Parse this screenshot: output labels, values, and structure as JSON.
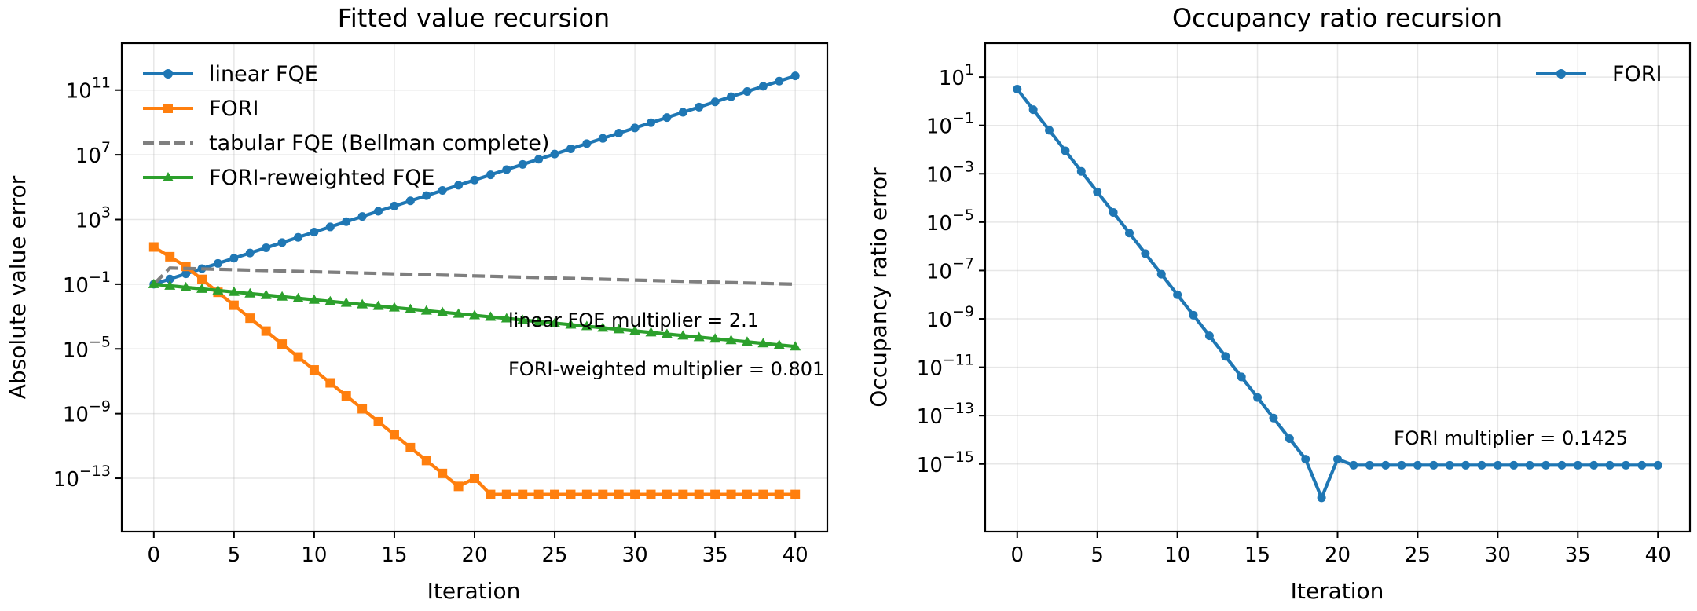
{
  "chart_data": [
    {
      "type": "line",
      "title": "Fitted value recursion",
      "xlabel": "Iteration",
      "ylabel": "Absolute value error",
      "yscale": "log",
      "xlim": [
        -2,
        42
      ],
      "ylog10_lim": [
        -16.3,
        13.9
      ],
      "xticks": [
        0,
        5,
        10,
        15,
        20,
        25,
        30,
        35,
        40
      ],
      "yticks_exp": [
        -13,
        -9,
        -5,
        -1,
        3,
        7,
        11
      ],
      "grid": true,
      "legend": {
        "placement": "upper-left",
        "entries": [
          "linear FQE",
          "FORI",
          "tabular FQE (Bellman complete)",
          "FORI-reweighted FQE"
        ]
      },
      "annotations": [
        "linear FQE multiplier = 2.1",
        "FORI-weighted multiplier = 0.801"
      ],
      "series": [
        {
          "name": "linear FQE",
          "color": "#1f77b4",
          "marker": "circle",
          "style": "solid",
          "log10_start": -1.0,
          "log10_step": 0.322,
          "n": 41
        },
        {
          "name": "FORI",
          "color": "#ff7f0e",
          "marker": "square",
          "style": "solid",
          "log10_values": [
            1.3,
            0.7,
            0.1,
            -0.7,
            -1.5,
            -2.3,
            -3.1,
            -3.9,
            -4.7,
            -5.5,
            -6.3,
            -7.1,
            -7.9,
            -8.7,
            -9.5,
            -10.3,
            -11.1,
            -11.9,
            -12.7,
            -13.5,
            -13.0,
            -14.0,
            -14.0,
            -14.0,
            -14.0,
            -14.0,
            -14.0,
            -14.0,
            -14.0,
            -14.0,
            -14.0,
            -14.0,
            -14.0,
            -14.0,
            -14.0,
            -14.0,
            -14.0,
            -14.0,
            -14.0,
            -14.0,
            -14.0
          ]
        },
        {
          "name": "tabular FQE (Bellman complete)",
          "color": "#7f7f7f",
          "marker": "none",
          "style": "dashed",
          "log10_values_points": [
            [
              0,
              -1.0
            ],
            [
              1,
              0.0
            ],
            [
              40,
              -1.0
            ]
          ]
        },
        {
          "name": "FORI-reweighted FQE",
          "color": "#2ca02c",
          "marker": "triangle",
          "style": "solid",
          "log10_start": -1.0,
          "log10_step": -0.0963,
          "n": 41
        }
      ]
    },
    {
      "type": "line",
      "title": "Occupancy ratio recursion",
      "xlabel": "Iteration",
      "ylabel": "Occupancy ratio error",
      "yscale": "log",
      "xlim": [
        -2,
        42
      ],
      "ylog10_lim": [
        -17.8,
        2.4
      ],
      "xticks": [
        0,
        5,
        10,
        15,
        20,
        25,
        30,
        35,
        40
      ],
      "yticks_exp": [
        -15,
        -13,
        -11,
        -9,
        -7,
        -5,
        -3,
        -1,
        1
      ],
      "grid": true,
      "legend": {
        "placement": "upper-right",
        "entries": [
          "FORI"
        ]
      },
      "annotations": [
        "FORI multiplier = 0.1425"
      ],
      "series": [
        {
          "name": "FORI",
          "color": "#1f77b4",
          "marker": "circle",
          "style": "solid",
          "log10_values": [
            0.5,
            -0.35,
            -1.2,
            -2.05,
            -2.9,
            -3.75,
            -4.6,
            -5.45,
            -6.3,
            -7.15,
            -8.0,
            -8.85,
            -9.7,
            -10.55,
            -11.4,
            -12.25,
            -13.1,
            -13.95,
            -14.8,
            -16.4,
            -14.8,
            -15.05,
            -15.05,
            -15.05,
            -15.05,
            -15.05,
            -15.05,
            -15.05,
            -15.05,
            -15.05,
            -15.05,
            -15.05,
            -15.05,
            -15.05,
            -15.05,
            -15.05,
            -15.05,
            -15.05,
            -15.05,
            -15.05,
            -15.05
          ]
        }
      ]
    }
  ]
}
